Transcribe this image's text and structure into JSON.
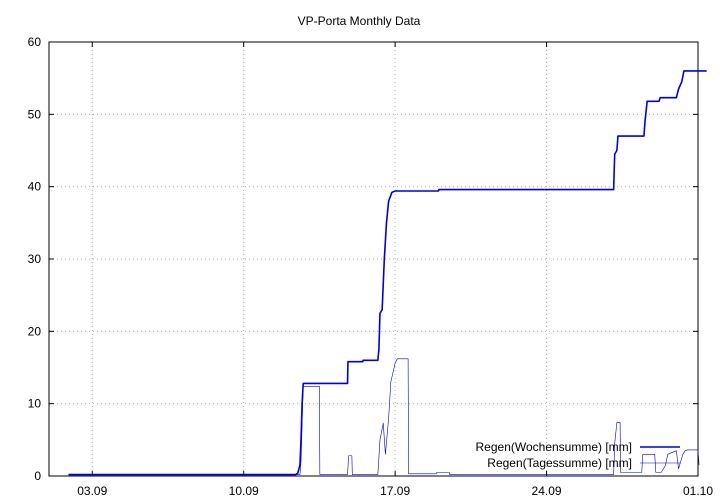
{
  "chart_data": {
    "type": "line",
    "title": "VP-Porta Monthly Data",
    "xlabel": "",
    "ylabel": "",
    "x_unit": "day of month (September)",
    "xlim": [
      1.0,
      31.0
    ],
    "ylim": [
      0,
      60
    ],
    "y_ticks": [
      0,
      10,
      20,
      30,
      40,
      50,
      60
    ],
    "x_ticks": [
      {
        "x": 3,
        "label": "03.09"
      },
      {
        "x": 10,
        "label": "10.09"
      },
      {
        "x": 17,
        "label": "17.09"
      },
      {
        "x": 24,
        "label": "24.09"
      },
      {
        "x": 31,
        "label": "01.10"
      }
    ],
    "grid": true,
    "legend_position": "bottom-right",
    "series": [
      {
        "name": "Regen(Wochensumme) [mm]",
        "color": "#0000dd",
        "width": "thick",
        "points": [
          [
            1.9,
            0.2
          ],
          [
            12.4,
            0.2
          ],
          [
            12.5,
            0.4
          ],
          [
            12.6,
            1.5
          ],
          [
            12.65,
            5.0
          ],
          [
            12.7,
            10.0
          ],
          [
            12.75,
            12.8
          ],
          [
            14.8,
            12.8
          ],
          [
            14.82,
            15.8
          ],
          [
            15.5,
            15.8
          ],
          [
            15.52,
            16.0
          ],
          [
            16.2,
            16.0
          ],
          [
            16.25,
            17.5
          ],
          [
            16.3,
            22.5
          ],
          [
            16.4,
            23.0
          ],
          [
            16.5,
            30.0
          ],
          [
            16.6,
            35.0
          ],
          [
            16.7,
            38.0
          ],
          [
            16.85,
            39.2
          ],
          [
            17.0,
            39.4
          ],
          [
            19.0,
            39.4
          ],
          [
            19.02,
            39.6
          ],
          [
            27.1,
            39.6
          ],
          [
            27.15,
            44.5
          ],
          [
            27.25,
            45.0
          ],
          [
            27.3,
            47.0
          ],
          [
            28.5,
            47.0
          ],
          [
            28.55,
            49.0
          ],
          [
            28.65,
            51.8
          ],
          [
            29.2,
            51.8
          ],
          [
            29.25,
            52.3
          ],
          [
            30.0,
            52.3
          ],
          [
            30.1,
            53.5
          ],
          [
            30.25,
            54.5
          ],
          [
            30.35,
            56.0
          ],
          [
            31.4,
            56.0
          ]
        ]
      },
      {
        "name": "Regen(Tagessumme) [mm]",
        "color": "#0000dd",
        "width": "thin",
        "points": [
          [
            1.9,
            0.2
          ],
          [
            12.6,
            0.2
          ],
          [
            12.65,
            2.0
          ],
          [
            12.75,
            12.4
          ],
          [
            13.5,
            12.4
          ],
          [
            13.52,
            0.2
          ],
          [
            14.8,
            0.2
          ],
          [
            14.85,
            2.8
          ],
          [
            15.0,
            2.8
          ],
          [
            15.02,
            0.2
          ],
          [
            16.2,
            0.2
          ],
          [
            16.3,
            5.0
          ],
          [
            16.45,
            7.3
          ],
          [
            16.55,
            3.0
          ],
          [
            16.7,
            8.0
          ],
          [
            16.8,
            13.0
          ],
          [
            17.0,
            15.6
          ],
          [
            17.1,
            16.2
          ],
          [
            17.6,
            16.2
          ],
          [
            17.62,
            0.3
          ],
          [
            18.9,
            0.3
          ],
          [
            18.92,
            0.5
          ],
          [
            19.5,
            0.5
          ],
          [
            19.52,
            0.2
          ],
          [
            27.1,
            0.2
          ],
          [
            27.15,
            4.5
          ],
          [
            27.25,
            7.4
          ],
          [
            27.4,
            7.4
          ],
          [
            27.42,
            0.5
          ],
          [
            28.4,
            0.5
          ],
          [
            28.45,
            3.0
          ],
          [
            29.0,
            3.0
          ],
          [
            29.05,
            0.5
          ],
          [
            29.3,
            0.5
          ],
          [
            29.5,
            1.5
          ],
          [
            29.6,
            3.0
          ],
          [
            30.0,
            3.5
          ],
          [
            30.1,
            1.0
          ],
          [
            30.3,
            3.0
          ],
          [
            30.4,
            3.5
          ],
          [
            30.5,
            3.6
          ],
          [
            31.0,
            3.6
          ],
          [
            31.05,
            1.5
          ]
        ]
      }
    ]
  }
}
